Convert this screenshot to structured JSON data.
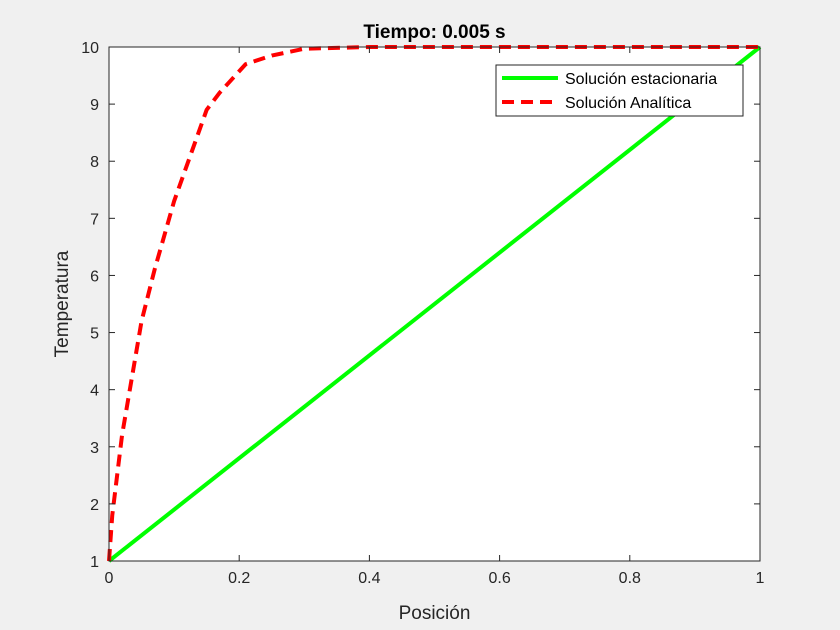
{
  "chart_data": {
    "type": "line",
    "title": "Tiempo: 0.005 s",
    "xlabel": "Posición",
    "ylabel": "Temperatura",
    "xlim": [
      0,
      1
    ],
    "ylim": [
      1,
      10
    ],
    "xticks": [
      "0",
      "0.2",
      "0.4",
      "0.6",
      "0.8",
      "1"
    ],
    "yticks": [
      "1",
      "2",
      "3",
      "4",
      "5",
      "6",
      "7",
      "8",
      "9",
      "10"
    ],
    "grid": false,
    "legend_position": "top-right",
    "series": [
      {
        "name": "Solución estacionaria",
        "color": "#00ff00",
        "style": "solid",
        "x": [
          0,
          1
        ],
        "y": [
          1,
          10
        ]
      },
      {
        "name": "Solución Analítica",
        "color": "#ff0000",
        "style": "dashed",
        "x": [
          0,
          0.005,
          0.02,
          0.05,
          0.07,
          0.1,
          0.15,
          0.17,
          0.21,
          0.25,
          0.3,
          0.4,
          0.5,
          0.6,
          0.7,
          0.8,
          0.9,
          1.0
        ],
        "y": [
          1,
          1.8,
          3.2,
          5.2,
          6.1,
          7.3,
          8.9,
          9.2,
          9.7,
          9.85,
          9.97,
          10,
          10,
          10,
          10,
          10,
          10,
          10
        ]
      }
    ]
  }
}
